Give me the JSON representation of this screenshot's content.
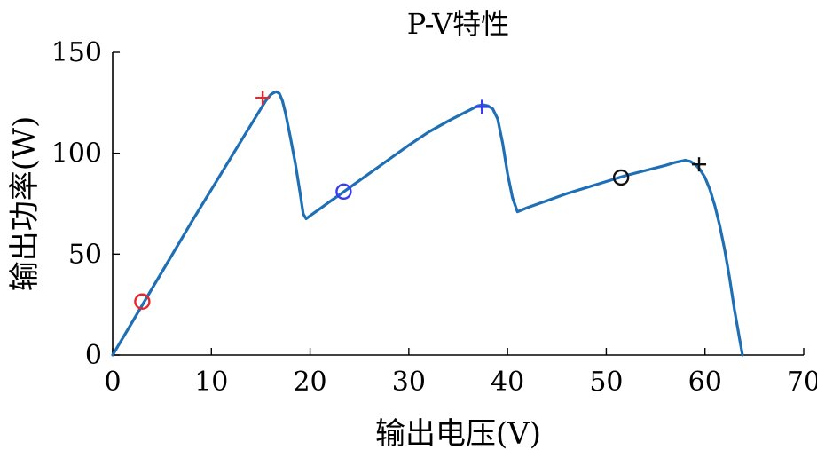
{
  "chart_data": {
    "type": "line",
    "title": "P-V特性",
    "xlabel": "输出电压(V)",
    "ylabel": "输出功率(W)",
    "xlim": [
      0,
      70
    ],
    "ylim": [
      0,
      150
    ],
    "xticks": [
      0,
      10,
      20,
      30,
      40,
      50,
      60,
      70
    ],
    "yticks": [
      0,
      50,
      100,
      150
    ],
    "grid": false,
    "line_color": "#1f6fb4",
    "series": [
      {
        "x": [
          0,
          2,
          4,
          6,
          8,
          10,
          12,
          14,
          15,
          15.5,
          16,
          16.3,
          16.6,
          16.9,
          17.2,
          17.5,
          18,
          18.5,
          19,
          19.3,
          19.6,
          20,
          21,
          22,
          23,
          24,
          26,
          28,
          30,
          32,
          34,
          36,
          37,
          37.5,
          38,
          38.5,
          39,
          39.5,
          40,
          40.5,
          41,
          42,
          44,
          46,
          48,
          50,
          52,
          54,
          56,
          57,
          58,
          58.5,
          59,
          59.5,
          60,
          60.5,
          61,
          61.5,
          62,
          62.5,
          63,
          63.5,
          63.8
        ],
        "y": [
          0,
          16.5,
          33,
          49.5,
          66,
          82,
          98,
          114,
          122,
          126,
          129,
          130,
          130.5,
          129.5,
          126,
          120,
          108,
          95,
          80,
          70,
          67.5,
          69,
          72.5,
          76,
          79.5,
          83,
          90,
          97,
          104,
          110.5,
          116,
          121,
          123.5,
          124,
          123.5,
          122,
          117,
          105,
          90,
          78,
          71,
          73,
          76.5,
          80,
          83,
          86,
          89,
          91.5,
          94,
          95.5,
          96.5,
          96,
          94.5,
          92,
          88,
          82,
          74,
          64,
          52,
          38,
          22,
          8,
          0
        ]
      }
    ],
    "markers": [
      {
        "type": "circle",
        "x": 3.0,
        "y": 26.5,
        "color": "#e8262b"
      },
      {
        "type": "plus",
        "x": 15.2,
        "y": 127.5,
        "color": "#e8262b"
      },
      {
        "type": "circle",
        "x": 23.4,
        "y": 81,
        "color": "#3b3cf2"
      },
      {
        "type": "plus",
        "x": 37.4,
        "y": 123,
        "color": "#3b3cf2"
      },
      {
        "type": "circle",
        "x": 51.5,
        "y": 88,
        "color": "#111111"
      },
      {
        "type": "plus",
        "x": 59.4,
        "y": 94.5,
        "color": "#111111"
      }
    ]
  }
}
